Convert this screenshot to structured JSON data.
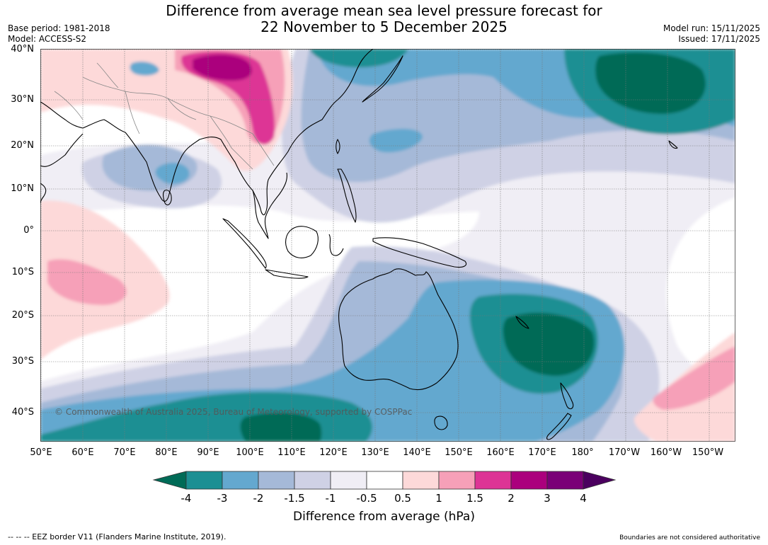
{
  "title": {
    "line1": "Difference from average mean sea level pressure forecast for",
    "line2": "22 November to 5 December 2025"
  },
  "meta": {
    "base_period": "Base period: 1981-2018",
    "model": "Model: ACCESS-S2",
    "model_run": "Model run: 15/11/2025",
    "issued": "Issued: 17/11/2025"
  },
  "map": {
    "lat_labels": [
      "40°N",
      "30°N",
      "20°N",
      "10°N",
      "0°",
      "10°S",
      "20°S",
      "30°S",
      "40°S"
    ],
    "lon_labels": [
      "50°E",
      "60°E",
      "70°E",
      "80°E",
      "90°E",
      "100°E",
      "110°E",
      "120°E",
      "130°E",
      "140°E",
      "150°E",
      "160°E",
      "170°E",
      "180°",
      "170°W",
      "160°W",
      "150°W"
    ],
    "copyright": "© Commonwealth of Australia 2025, Bureau of Meteorology, supported by COSPPac"
  },
  "colorbar": {
    "title": "Difference from average (hPa)",
    "ticks": [
      "-4",
      "-3",
      "-2",
      "-1.5",
      "-1",
      "-0.5",
      "0.5",
      "1",
      "1.5",
      "2",
      "3",
      "4"
    ],
    "colors": [
      "#006b57",
      "#1c8f93",
      "#64a8cf",
      "#a5b9d8",
      "#cfd1e5",
      "#f0eef5",
      "#ffffff",
      "#fdd9d9",
      "#f6a0b8",
      "#dd3495",
      "#ab007d",
      "#7a0077",
      "#4b005f"
    ]
  },
  "footer": {
    "eez_note": "--  --  -- EEZ border V11 (Flanders Marine Institute, 2019).",
    "boundaries_note": "Boundaries are not considered authoritative"
  }
}
